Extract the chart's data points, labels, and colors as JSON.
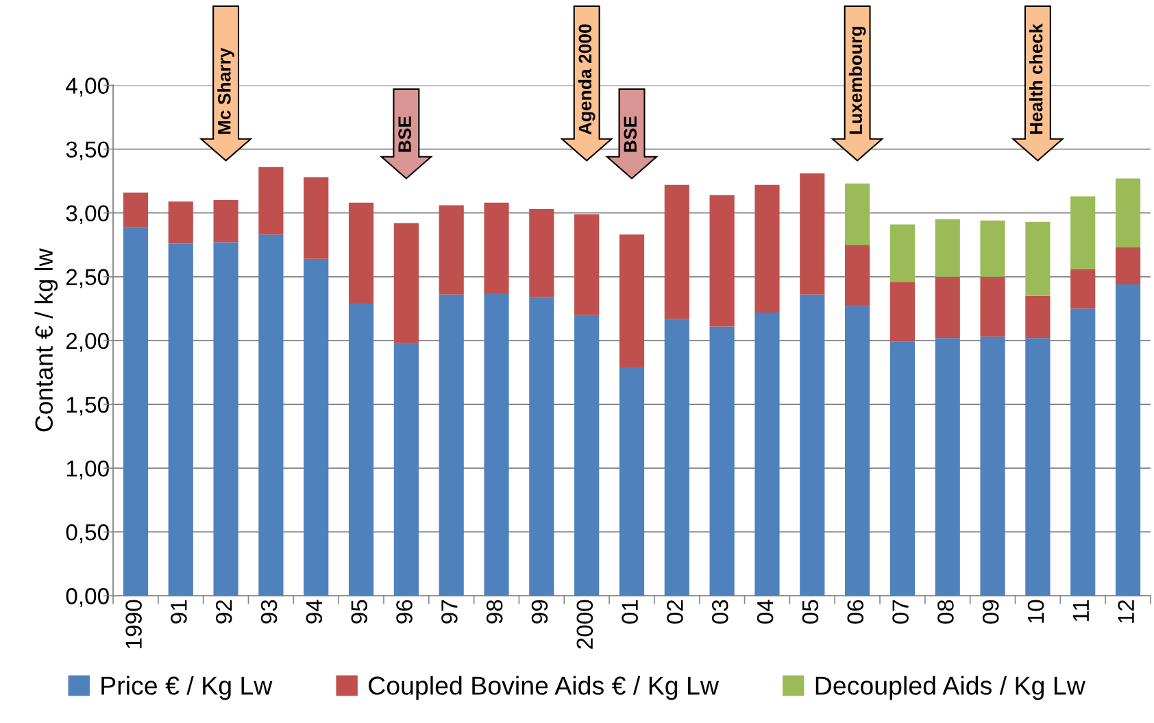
{
  "chart_data": {
    "type": "bar",
    "stacked": true,
    "ylabel": "Contant € / kg lw",
    "categories": [
      "1990",
      "91",
      "92",
      "93",
      "94",
      "95",
      "96",
      "97",
      "98",
      "99",
      "2000",
      "01",
      "02",
      "03",
      "04",
      "05",
      "06",
      "07",
      "08",
      "09",
      "10",
      "11",
      "12"
    ],
    "series": [
      {
        "name": "Price € / Kg Lw",
        "color": "#4f81bd",
        "values": [
          2.89,
          2.76,
          2.77,
          2.83,
          2.64,
          2.29,
          1.98,
          2.36,
          2.37,
          2.34,
          2.2,
          1.79,
          2.17,
          2.11,
          2.22,
          2.36,
          2.27,
          1.99,
          2.02,
          2.03,
          2.02,
          2.25,
          2.44
        ]
      },
      {
        "name": "Coupled Bovine Aids € / Kg Lw",
        "color": "#c0504d",
        "values": [
          0.27,
          0.33,
          0.33,
          0.53,
          0.64,
          0.79,
          0.94,
          0.7,
          0.71,
          0.69,
          0.79,
          1.04,
          1.05,
          1.03,
          1.0,
          0.95,
          0.48,
          0.47,
          0.48,
          0.47,
          0.33,
          0.31,
          0.29
        ]
      },
      {
        "name": "Decoupled Aids / Kg Lw",
        "color": "#9bbb59",
        "values": [
          null,
          null,
          null,
          null,
          null,
          null,
          null,
          null,
          null,
          null,
          null,
          null,
          null,
          null,
          null,
          null,
          0.48,
          0.45,
          0.45,
          0.44,
          0.58,
          0.57,
          0.54
        ]
      }
    ],
    "ylim": [
      0,
      4
    ],
    "yticks": [
      {
        "value": 0,
        "label": "0,00"
      },
      {
        "value": 0.5,
        "label": "0,50"
      },
      {
        "value": 1,
        "label": "1,00"
      },
      {
        "value": 1.5,
        "label": "1,50"
      },
      {
        "value": 2,
        "label": "2,00"
      },
      {
        "value": 2.5,
        "label": "2,50"
      },
      {
        "value": 3,
        "label": "3,00"
      },
      {
        "value": 3.5,
        "label": "3,50"
      },
      {
        "value": 4,
        "label": "4,00"
      }
    ],
    "grid": "y",
    "legend": "bottom",
    "ref_lines": [
      {
        "axis": "x",
        "value": "92",
        "label": "Mc Sharry",
        "color": "#fac090"
      },
      {
        "axis": "x",
        "value": "96",
        "label": "BSE",
        "color": "#d99694"
      },
      {
        "axis": "x",
        "value": "2000",
        "label": "Agenda 2000",
        "color": "#fac090"
      },
      {
        "axis": "x",
        "value": "01",
        "label": "BSE",
        "color": "#d99694"
      },
      {
        "axis": "x",
        "value": "06",
        "label": "Luxembourg",
        "color": "#fac090"
      },
      {
        "axis": "x",
        "value": "10",
        "label": "Health check",
        "color": "#fac090"
      }
    ]
  }
}
